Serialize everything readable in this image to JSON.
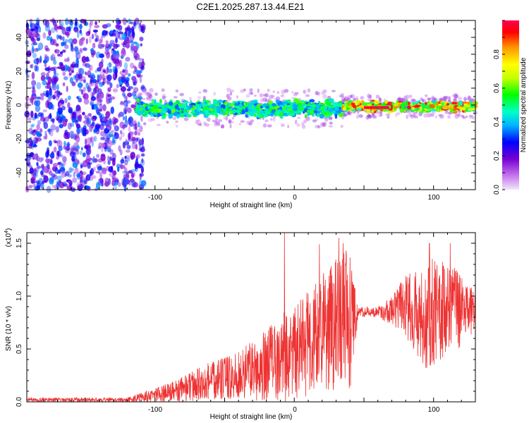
{
  "title": "C2E1.2025.287.13.44.E21",
  "chart_data": [
    {
      "type": "heatmap",
      "title": "C2E1.2025.287.13.44.E21",
      "xlabel": "Height of straight line (km)",
      "ylabel": "Frequency (Hz)",
      "xlim": [
        -192,
        130
      ],
      "ylim": [
        -50,
        50
      ],
      "x_ticks": [
        "-100",
        "0",
        "100"
      ],
      "y_ticks": [
        "-40",
        "-20",
        "0",
        "20",
        "40"
      ],
      "colorbar": {
        "label": "Normalized spectral amplitude",
        "range": [
          0.0,
          1.0
        ],
        "ticks": [
          "0.0",
          "0.2",
          "0.4",
          "0.6",
          "0.8"
        ],
        "colors": [
          "#f0e6fa",
          "#c878f0",
          "#7800d2",
          "#0000ff",
          "#00b4ff",
          "#00ffc8",
          "#00ff00",
          "#c8ff00",
          "#ffff00",
          "#ff9600",
          "#ff0000",
          "#ff0050"
        ]
      },
      "regions": [
        {
          "name": "noise",
          "x_range": [
            -192,
            -108
          ],
          "freq_spread": 50,
          "amplitude": [
            0.1,
            0.35
          ]
        },
        {
          "name": "band-noisy",
          "x_range": [
            -113,
            35
          ],
          "center_hz": -2,
          "half_width_hz": 5,
          "amplitude": [
            0.3,
            0.6
          ]
        },
        {
          "name": "band-clean",
          "x_range": [
            35,
            130
          ],
          "center_hz": -1,
          "half_width_hz": 3,
          "amplitude": [
            0.4,
            0.98
          ]
        },
        {
          "name": "peak-line",
          "x_range": [
            50,
            68
          ],
          "center_hz": -1.5,
          "amplitude": 0.98
        }
      ]
    },
    {
      "type": "line",
      "xlabel": "Height of straight line (km)",
      "ylabel": "SNR (10 * v/v)",
      "y_scale_label": "(x10",
      "y_scale_exponent": "4",
      "y_scale_suffix": ")",
      "xlim": [
        -192,
        130
      ],
      "ylim": [
        0,
        1.6
      ],
      "x_ticks": [
        "-100",
        "0",
        "100"
      ],
      "y_ticks": [
        "0.0",
        "0.5",
        "1.0",
        "1.5"
      ],
      "color": "#ee3333",
      "envelope": [
        {
          "x": -192,
          "mean": 0.02,
          "spread": 0.02
        },
        {
          "x": -120,
          "mean": 0.02,
          "spread": 0.02
        },
        {
          "x": -100,
          "mean": 0.06,
          "spread": 0.07
        },
        {
          "x": -80,
          "mean": 0.12,
          "spread": 0.12
        },
        {
          "x": -60,
          "mean": 0.2,
          "spread": 0.18
        },
        {
          "x": -40,
          "mean": 0.25,
          "spread": 0.22
        },
        {
          "x": -20,
          "mean": 0.35,
          "spread": 0.35
        },
        {
          "x": -10,
          "mean": 0.4,
          "spread": 0.45
        },
        {
          "x": 0,
          "mean": 0.45,
          "spread": 0.45
        },
        {
          "x": 10,
          "mean": 0.55,
          "spread": 0.5
        },
        {
          "x": 20,
          "mean": 0.65,
          "spread": 0.55
        },
        {
          "x": 30,
          "mean": 0.75,
          "spread": 0.65
        },
        {
          "x": 40,
          "mean": 0.8,
          "spread": 0.7
        },
        {
          "x": 46,
          "mean": 0.85,
          "spread": 0.05
        },
        {
          "x": 60,
          "mean": 0.85,
          "spread": 0.05
        },
        {
          "x": 70,
          "mean": 0.87,
          "spread": 0.15
        },
        {
          "x": 80,
          "mean": 0.9,
          "spread": 0.3
        },
        {
          "x": 95,
          "mean": 0.85,
          "spread": 0.55
        },
        {
          "x": 110,
          "mean": 0.9,
          "spread": 0.45
        },
        {
          "x": 120,
          "mean": 0.85,
          "spread": 0.35
        },
        {
          "x": 130,
          "mean": 0.85,
          "spread": 0.2
        }
      ],
      "spikes": [
        {
          "x": -7,
          "y": 1.62
        },
        {
          "x": 18,
          "y": 1.49
        },
        {
          "x": 32,
          "y": 1.55
        },
        {
          "x": 35,
          "y": 1.5
        },
        {
          "x": 97,
          "y": 1.5
        },
        {
          "x": 112,
          "y": 1.5
        }
      ]
    }
  ]
}
